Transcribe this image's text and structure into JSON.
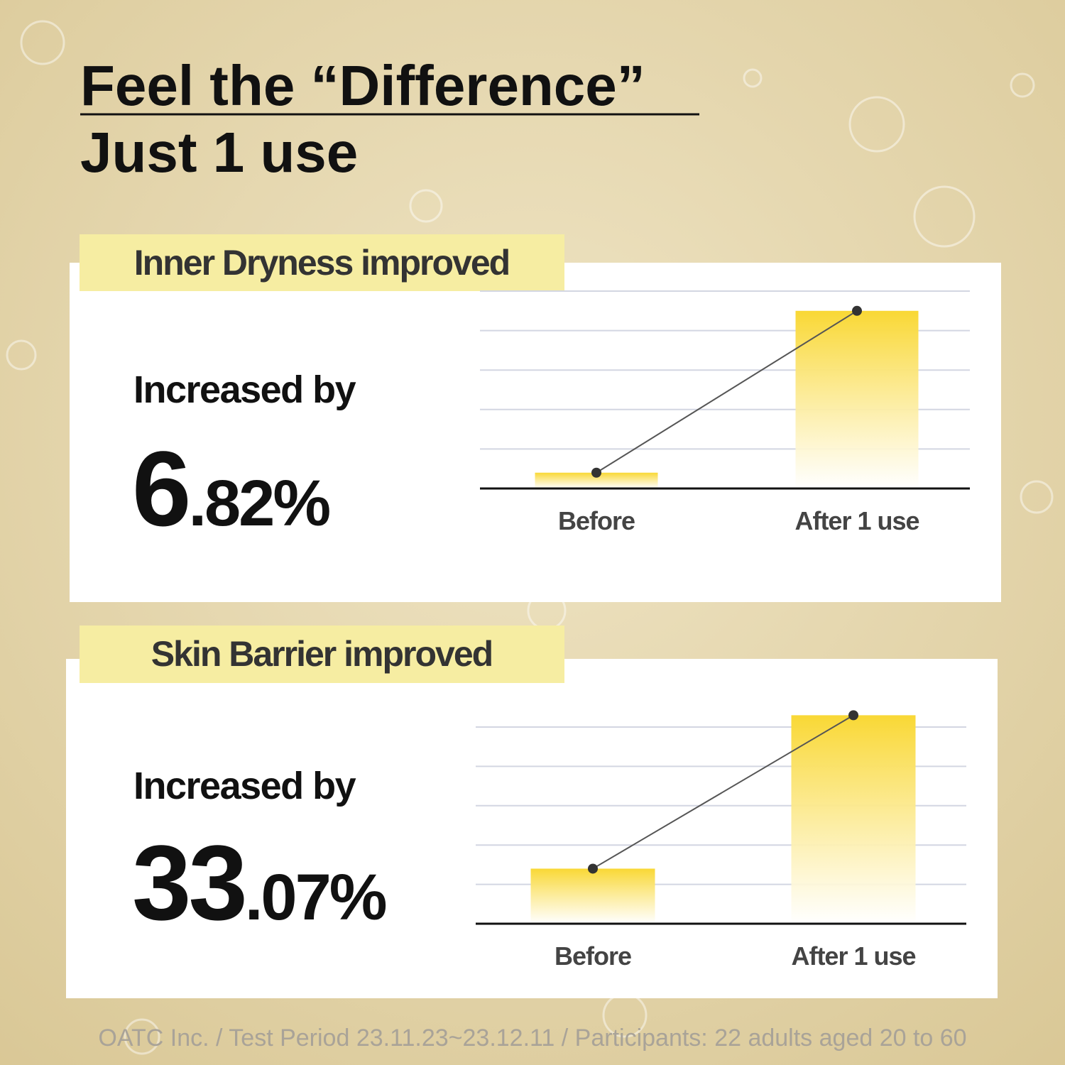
{
  "title": "Feel the “Difference”",
  "subtitle": "Just 1 use",
  "footnote": "OATC Inc. / Test Period 23.11.23~23.12.11 / Participants: 22 adults aged 20 to 60",
  "chart_data": [
    {
      "type": "bar",
      "title": "Inner Dryness improved",
      "annotation": "Increased by",
      "stat": [
        "6",
        ".82%"
      ],
      "categories": [
        "Before",
        "After 1 use"
      ],
      "values": [
        0.4,
        4.5
      ],
      "color": "#f9d835",
      "line_color": "#555555",
      "ylim": [
        0,
        5.5
      ],
      "yticks": [
        1,
        2,
        3,
        4,
        5
      ],
      "grid": true
    },
    {
      "type": "bar",
      "title": "Skin Barrier improved",
      "annotation": "Increased by",
      "stat": [
        "33",
        ".07%"
      ],
      "categories": [
        "Before",
        "After 1 use"
      ],
      "values": [
        1.4,
        5.3
      ],
      "color": "#f9d835",
      "line_color": "#555555",
      "ylim": [
        0,
        5.5
      ],
      "yticks": [
        1,
        2,
        3,
        4,
        5
      ],
      "grid": true
    }
  ]
}
